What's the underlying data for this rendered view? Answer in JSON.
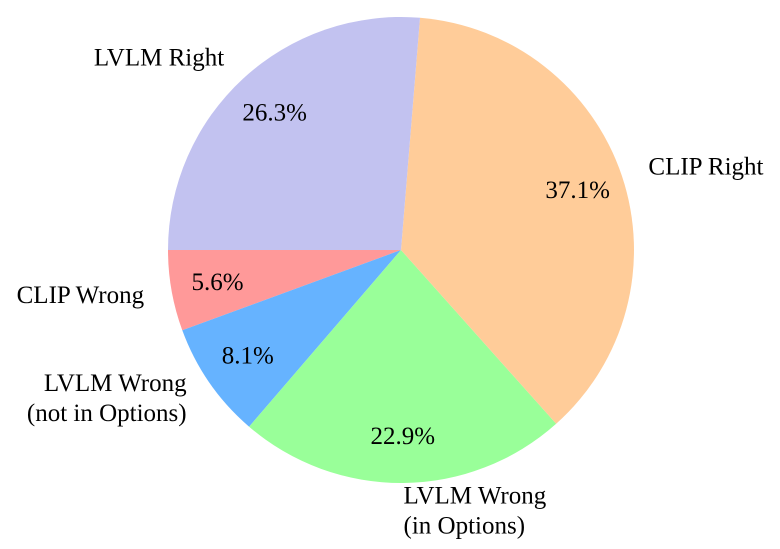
{
  "chart_data": {
    "type": "pie",
    "title": "",
    "start_angle_deg": 270,
    "direction": "counterclockwise",
    "slices": [
      {
        "label": [
          "CLIP Wrong"
        ],
        "pct_label": "5.6%",
        "value": 5.6,
        "color": "#ff9999"
      },
      {
        "label": [
          "LVLM Wrong",
          "(not in Options)"
        ],
        "pct_label": "8.1%",
        "value": 8.1,
        "color": "#66b3ff"
      },
      {
        "label": [
          "LVLM Wrong",
          "(in Options)"
        ],
        "pct_label": "22.9%",
        "value": 22.9,
        "color": "#99ff99"
      },
      {
        "label": [
          "CLIP Right"
        ],
        "pct_label": "37.1%",
        "value": 37.1,
        "color": "#ffcc99"
      },
      {
        "label": [
          "LVLM Right"
        ],
        "pct_label": "26.3%",
        "value": 26.3,
        "color": "#c2c2f0"
      }
    ]
  }
}
